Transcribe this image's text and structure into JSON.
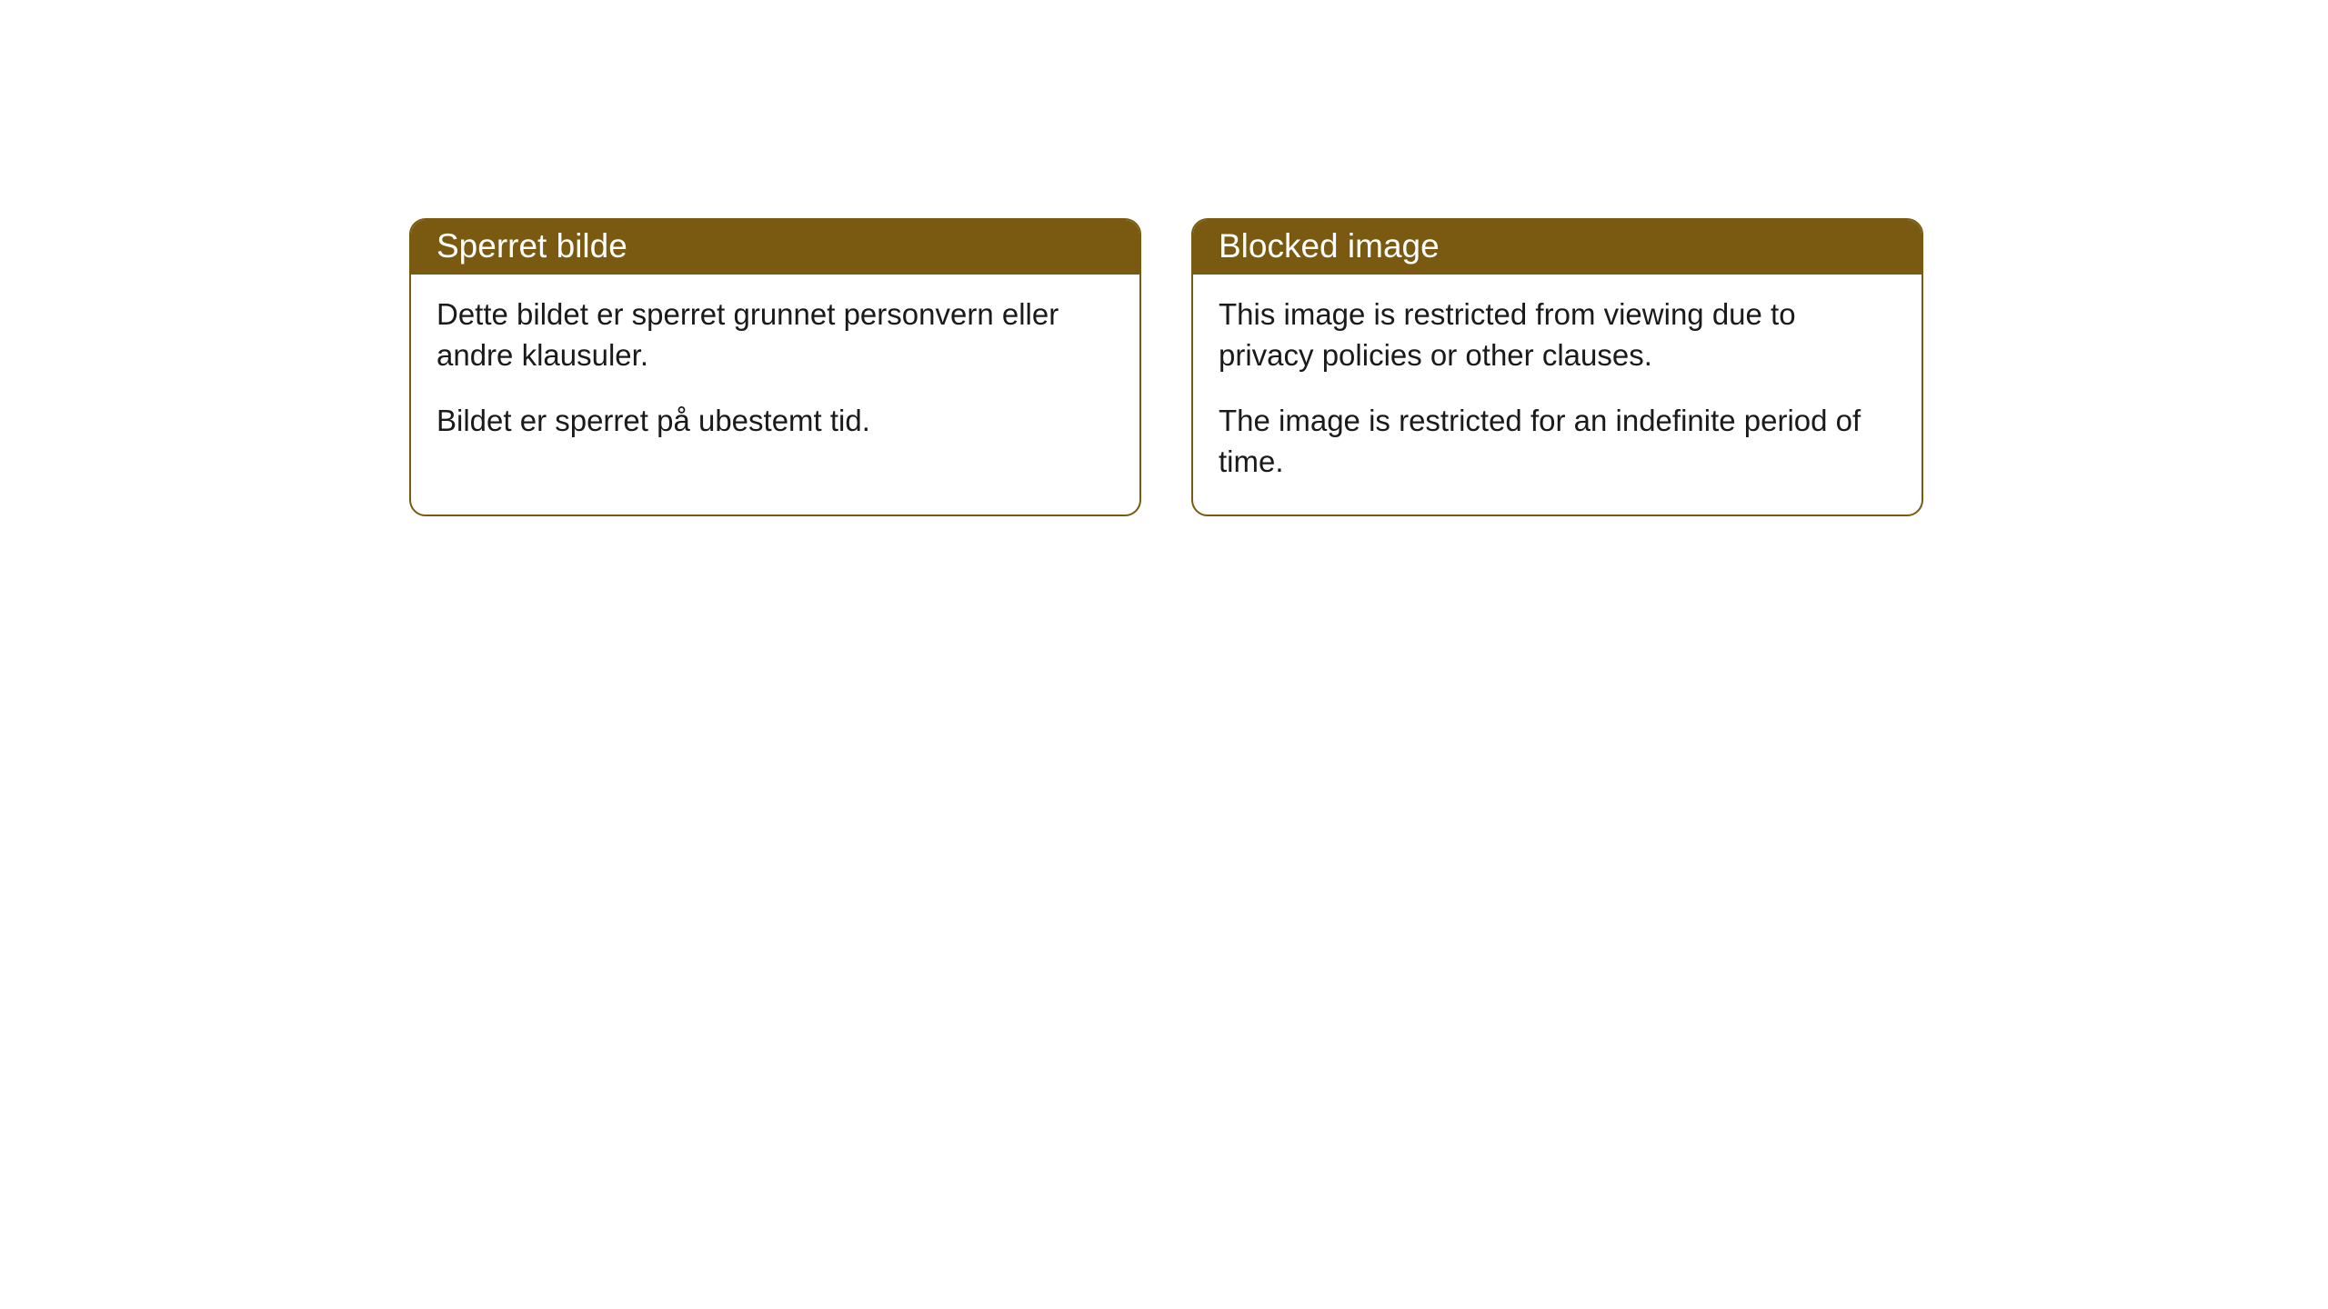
{
  "cards": [
    {
      "header": "Sperret bilde",
      "paragraph1": "Dette bildet er sperret grunnet personvern eller andre klausuler.",
      "paragraph2": "Bildet er sperret på ubestemt tid."
    },
    {
      "header": "Blocked image",
      "paragraph1": "This image is restricted from viewing due to privacy policies or other clauses.",
      "paragraph2": "The image is restricted for an indefinite period of time."
    }
  ],
  "style": {
    "header_background": "#7a5a10",
    "header_text_color": "#ffffff",
    "border_color": "#7a5a10",
    "body_background": "#ffffff",
    "body_text_color": "#1a1a1a",
    "border_radius": 18,
    "header_fontsize": 37,
    "body_fontsize": 33
  }
}
